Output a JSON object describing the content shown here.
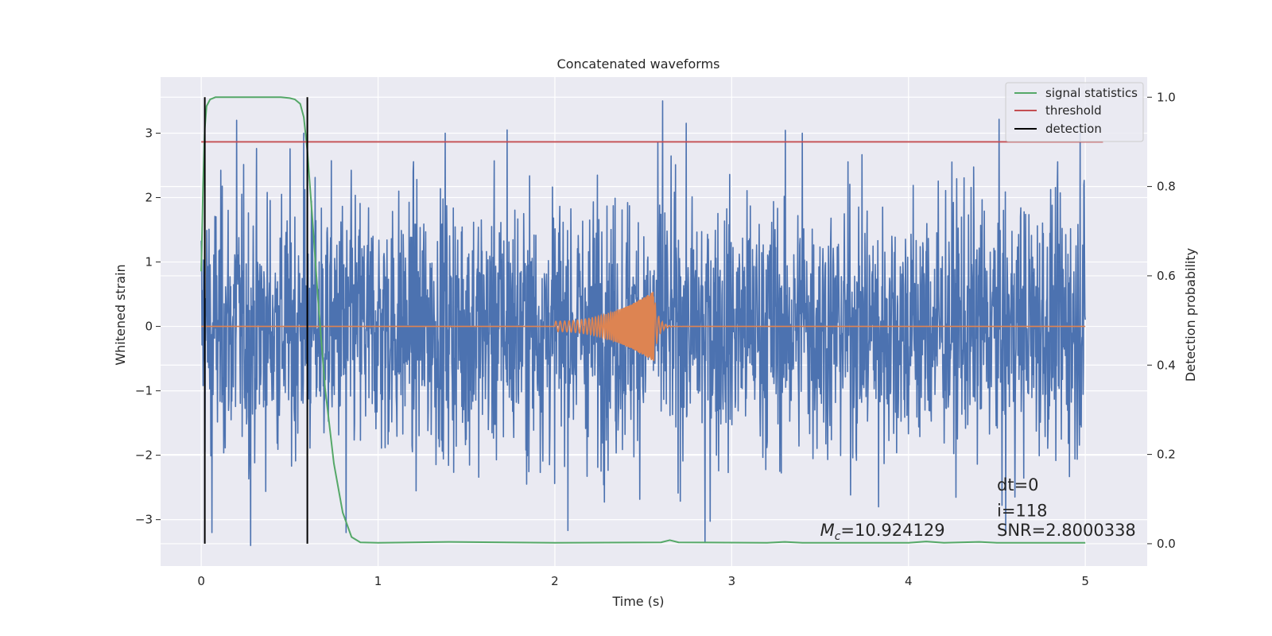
{
  "chart_data": {
    "type": "line",
    "title": "Concatenated waveforms",
    "xlabel": "Time (s)",
    "ylabel_left": "Whitened strain",
    "ylabel_right": "Detection probability",
    "xlim": [
      -0.23,
      5.35
    ],
    "ylim_left": [
      -3.72,
      3.87
    ],
    "ylim_right": [
      -0.05,
      1.045
    ],
    "xticks": [
      0,
      1,
      2,
      3,
      4,
      5
    ],
    "yticks_left": [
      -3,
      -2,
      -1,
      0,
      1,
      2,
      3
    ],
    "yticks_right": [
      0.0,
      0.2,
      0.4,
      0.6,
      0.8,
      1.0
    ],
    "xtick_labels": [
      "0",
      "1",
      "2",
      "3",
      "4",
      "5"
    ],
    "ytick_labels_left": [
      "−3",
      "−2",
      "−1",
      "0",
      "1",
      "2",
      "3"
    ],
    "ytick_labels_right": [
      "0.0",
      "0.2",
      "0.4",
      "0.6",
      "0.8",
      "1.0"
    ],
    "grid": true,
    "legend_position": "top-right",
    "legend": [
      "signal statistics",
      "threshold",
      "detection"
    ],
    "colors": {
      "plot_background": "#eaeaf2",
      "grid": "#ffffff",
      "strain": "#4c72b0",
      "template": "#dd8452",
      "signal_statistics": "#55a868",
      "threshold": "#c44e52",
      "detection": "#000000"
    },
    "series": [
      {
        "name": "whitened strain (noise)",
        "axis": "left",
        "x_range": [
          0,
          5
        ],
        "envelope_typical": 1.0,
        "envelope_peak": 3.5,
        "spikes": [
          {
            "x": 0.06,
            "y": -3.2
          },
          {
            "x": 0.2,
            "y": 3.2
          },
          {
            "x": 0.28,
            "y": -3.4
          },
          {
            "x": 0.58,
            "y": 3.0
          },
          {
            "x": 0.82,
            "y": -3.2
          },
          {
            "x": 1.38,
            "y": 3.0
          },
          {
            "x": 1.73,
            "y": 3.05
          },
          {
            "x": 2.61,
            "y": 3.55
          },
          {
            "x": 2.85,
            "y": -3.35
          },
          {
            "x": 3.4,
            "y": 3.0
          },
          {
            "x": 3.83,
            "y": -2.8
          },
          {
            "x": 4.55,
            "y": -3.2
          },
          {
            "x": 4.97,
            "y": 3.0
          }
        ]
      },
      {
        "name": "injected template",
        "axis": "left",
        "x_range": [
          0,
          5
        ],
        "chirp_start": 2.0,
        "chirp_merger": 2.56,
        "amplitude_start": 0.08,
        "amplitude_peak": 0.55
      },
      {
        "name": "signal statistics",
        "axis": "right",
        "x": [
          0.0,
          0.01,
          0.02,
          0.03,
          0.05,
          0.08,
          0.15,
          0.3,
          0.45,
          0.5,
          0.53,
          0.56,
          0.58,
          0.6,
          0.63,
          0.66,
          0.7,
          0.75,
          0.8,
          0.85,
          0.9,
          1.0,
          1.4,
          2.0,
          2.6,
          2.65,
          2.7,
          3.2,
          3.3,
          3.4,
          4.0,
          4.1,
          4.2,
          4.4,
          4.5,
          5.0
        ],
        "y": [
          0.61,
          0.8,
          0.93,
          0.98,
          0.995,
          1.0,
          1.0,
          1.0,
          1.0,
          0.998,
          0.995,
          0.985,
          0.955,
          0.88,
          0.72,
          0.55,
          0.35,
          0.18,
          0.07,
          0.015,
          0.003,
          0.002,
          0.004,
          0.002,
          0.003,
          0.008,
          0.003,
          0.002,
          0.004,
          0.002,
          0.002,
          0.005,
          0.002,
          0.004,
          0.002,
          0.002
        ]
      },
      {
        "name": "threshold",
        "axis": "right",
        "x": [
          0.0,
          5.1
        ],
        "y": [
          0.9,
          0.9
        ]
      },
      {
        "name": "detection",
        "axis": "right",
        "x": [
          0.02,
          0.6
        ],
        "y_range": [
          0.0,
          1.0
        ]
      }
    ],
    "annotations": [
      {
        "id": "dt",
        "text": "dt=0",
        "x": 4.5,
        "y_left": -2.55
      },
      {
        "id": "i",
        "text": "i=118",
        "x": 4.5,
        "y_left": -2.95
      },
      {
        "id": "snr",
        "text": "SNR=2.8000338",
        "x": 4.5,
        "y_left": -3.25
      },
      {
        "id": "mc",
        "text": "=10.924129",
        "x": 3.5,
        "y_left": -3.25,
        "prefix": "M",
        "subscript": "c"
      }
    ]
  }
}
